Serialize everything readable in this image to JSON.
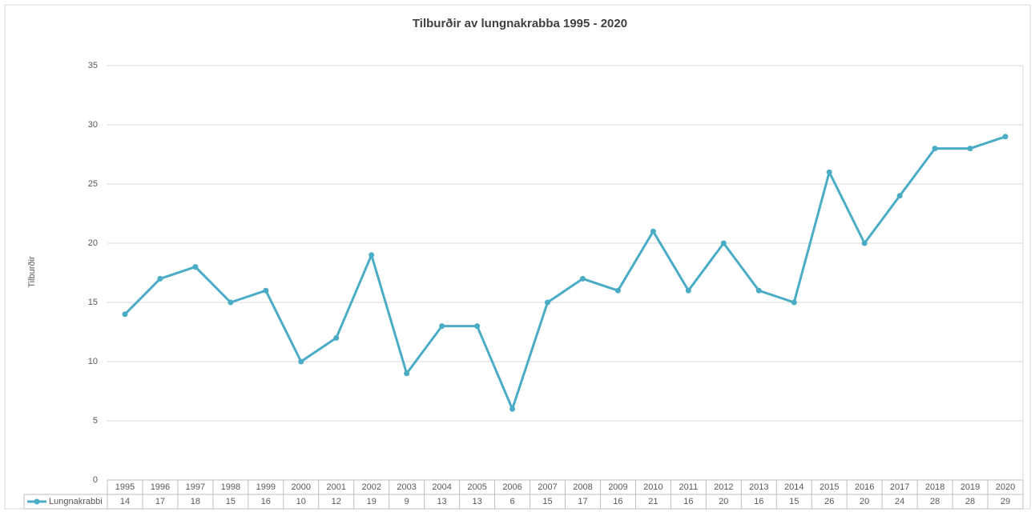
{
  "chart_data": {
    "type": "line",
    "title": "Tilburðir av lungnakrabba 1995 - 2020",
    "y_label": "Tilburðir",
    "categories": [
      "1995",
      "1996",
      "1997",
      "1998",
      "1999",
      "2000",
      "2001",
      "2002",
      "2003",
      "2004",
      "2005",
      "2006",
      "2007",
      "2008",
      "2009",
      "2010",
      "2011",
      "2012",
      "2013",
      "2014",
      "2015",
      "2016",
      "2017",
      "2018",
      "2019",
      "2020"
    ],
    "series": [
      {
        "name": "Lungnakrabbi",
        "color": "#4bacc6",
        "values": [
          14,
          17,
          18,
          15,
          16,
          10,
          12,
          19,
          9,
          13,
          13,
          6,
          15,
          17,
          16,
          21,
          16,
          20,
          16,
          15,
          26,
          20,
          24,
          28,
          28,
          29
        ]
      }
    ],
    "ylim": [
      0,
      35
    ],
    "yticks": [
      0,
      5,
      10,
      15,
      20,
      25,
      30,
      35
    ],
    "grid": true,
    "data_table": true
  }
}
